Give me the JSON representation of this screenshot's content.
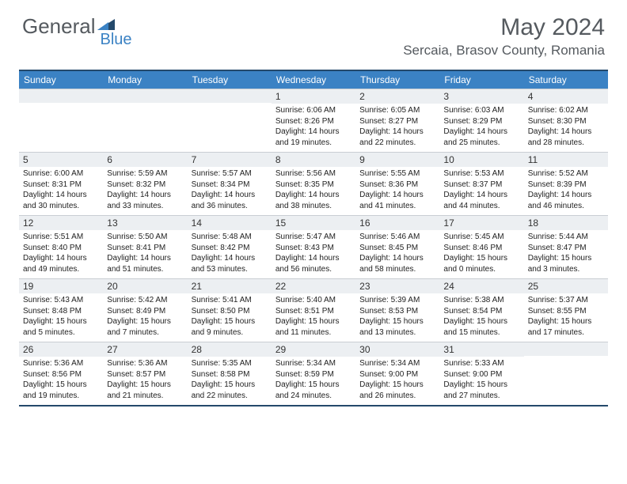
{
  "logo": {
    "part1": "General",
    "part2": "Blue"
  },
  "colors": {
    "header_bg": "#3b82c4",
    "border_dark": "#24496b",
    "daynum_bg": "#eceff2",
    "text_gray": "#555a5f"
  },
  "title": "May 2024",
  "location": "Sercaia, Brasov County, Romania",
  "day_headers": [
    "Sunday",
    "Monday",
    "Tuesday",
    "Wednesday",
    "Thursday",
    "Friday",
    "Saturday"
  ],
  "weeks": [
    [
      {
        "n": "",
        "sr": "",
        "ss": "",
        "dl": ""
      },
      {
        "n": "",
        "sr": "",
        "ss": "",
        "dl": ""
      },
      {
        "n": "",
        "sr": "",
        "ss": "",
        "dl": ""
      },
      {
        "n": "1",
        "sr": "Sunrise: 6:06 AM",
        "ss": "Sunset: 8:26 PM",
        "dl": "Daylight: 14 hours and 19 minutes."
      },
      {
        "n": "2",
        "sr": "Sunrise: 6:05 AM",
        "ss": "Sunset: 8:27 PM",
        "dl": "Daylight: 14 hours and 22 minutes."
      },
      {
        "n": "3",
        "sr": "Sunrise: 6:03 AM",
        "ss": "Sunset: 8:29 PM",
        "dl": "Daylight: 14 hours and 25 minutes."
      },
      {
        "n": "4",
        "sr": "Sunrise: 6:02 AM",
        "ss": "Sunset: 8:30 PM",
        "dl": "Daylight: 14 hours and 28 minutes."
      }
    ],
    [
      {
        "n": "5",
        "sr": "Sunrise: 6:00 AM",
        "ss": "Sunset: 8:31 PM",
        "dl": "Daylight: 14 hours and 30 minutes."
      },
      {
        "n": "6",
        "sr": "Sunrise: 5:59 AM",
        "ss": "Sunset: 8:32 PM",
        "dl": "Daylight: 14 hours and 33 minutes."
      },
      {
        "n": "7",
        "sr": "Sunrise: 5:57 AM",
        "ss": "Sunset: 8:34 PM",
        "dl": "Daylight: 14 hours and 36 minutes."
      },
      {
        "n": "8",
        "sr": "Sunrise: 5:56 AM",
        "ss": "Sunset: 8:35 PM",
        "dl": "Daylight: 14 hours and 38 minutes."
      },
      {
        "n": "9",
        "sr": "Sunrise: 5:55 AM",
        "ss": "Sunset: 8:36 PM",
        "dl": "Daylight: 14 hours and 41 minutes."
      },
      {
        "n": "10",
        "sr": "Sunrise: 5:53 AM",
        "ss": "Sunset: 8:37 PM",
        "dl": "Daylight: 14 hours and 44 minutes."
      },
      {
        "n": "11",
        "sr": "Sunrise: 5:52 AM",
        "ss": "Sunset: 8:39 PM",
        "dl": "Daylight: 14 hours and 46 minutes."
      }
    ],
    [
      {
        "n": "12",
        "sr": "Sunrise: 5:51 AM",
        "ss": "Sunset: 8:40 PM",
        "dl": "Daylight: 14 hours and 49 minutes."
      },
      {
        "n": "13",
        "sr": "Sunrise: 5:50 AM",
        "ss": "Sunset: 8:41 PM",
        "dl": "Daylight: 14 hours and 51 minutes."
      },
      {
        "n": "14",
        "sr": "Sunrise: 5:48 AM",
        "ss": "Sunset: 8:42 PM",
        "dl": "Daylight: 14 hours and 53 minutes."
      },
      {
        "n": "15",
        "sr": "Sunrise: 5:47 AM",
        "ss": "Sunset: 8:43 PM",
        "dl": "Daylight: 14 hours and 56 minutes."
      },
      {
        "n": "16",
        "sr": "Sunrise: 5:46 AM",
        "ss": "Sunset: 8:45 PM",
        "dl": "Daylight: 14 hours and 58 minutes."
      },
      {
        "n": "17",
        "sr": "Sunrise: 5:45 AM",
        "ss": "Sunset: 8:46 PM",
        "dl": "Daylight: 15 hours and 0 minutes."
      },
      {
        "n": "18",
        "sr": "Sunrise: 5:44 AM",
        "ss": "Sunset: 8:47 PM",
        "dl": "Daylight: 15 hours and 3 minutes."
      }
    ],
    [
      {
        "n": "19",
        "sr": "Sunrise: 5:43 AM",
        "ss": "Sunset: 8:48 PM",
        "dl": "Daylight: 15 hours and 5 minutes."
      },
      {
        "n": "20",
        "sr": "Sunrise: 5:42 AM",
        "ss": "Sunset: 8:49 PM",
        "dl": "Daylight: 15 hours and 7 minutes."
      },
      {
        "n": "21",
        "sr": "Sunrise: 5:41 AM",
        "ss": "Sunset: 8:50 PM",
        "dl": "Daylight: 15 hours and 9 minutes."
      },
      {
        "n": "22",
        "sr": "Sunrise: 5:40 AM",
        "ss": "Sunset: 8:51 PM",
        "dl": "Daylight: 15 hours and 11 minutes."
      },
      {
        "n": "23",
        "sr": "Sunrise: 5:39 AM",
        "ss": "Sunset: 8:53 PM",
        "dl": "Daylight: 15 hours and 13 minutes."
      },
      {
        "n": "24",
        "sr": "Sunrise: 5:38 AM",
        "ss": "Sunset: 8:54 PM",
        "dl": "Daylight: 15 hours and 15 minutes."
      },
      {
        "n": "25",
        "sr": "Sunrise: 5:37 AM",
        "ss": "Sunset: 8:55 PM",
        "dl": "Daylight: 15 hours and 17 minutes."
      }
    ],
    [
      {
        "n": "26",
        "sr": "Sunrise: 5:36 AM",
        "ss": "Sunset: 8:56 PM",
        "dl": "Daylight: 15 hours and 19 minutes."
      },
      {
        "n": "27",
        "sr": "Sunrise: 5:36 AM",
        "ss": "Sunset: 8:57 PM",
        "dl": "Daylight: 15 hours and 21 minutes."
      },
      {
        "n": "28",
        "sr": "Sunrise: 5:35 AM",
        "ss": "Sunset: 8:58 PM",
        "dl": "Daylight: 15 hours and 22 minutes."
      },
      {
        "n": "29",
        "sr": "Sunrise: 5:34 AM",
        "ss": "Sunset: 8:59 PM",
        "dl": "Daylight: 15 hours and 24 minutes."
      },
      {
        "n": "30",
        "sr": "Sunrise: 5:34 AM",
        "ss": "Sunset: 9:00 PM",
        "dl": "Daylight: 15 hours and 26 minutes."
      },
      {
        "n": "31",
        "sr": "Sunrise: 5:33 AM",
        "ss": "Sunset: 9:00 PM",
        "dl": "Daylight: 15 hours and 27 minutes."
      },
      {
        "n": "",
        "sr": "",
        "ss": "",
        "dl": ""
      }
    ]
  ]
}
